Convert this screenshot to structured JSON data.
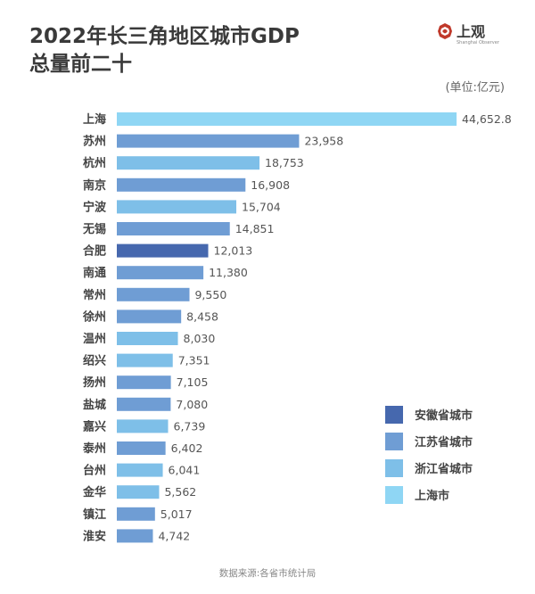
{
  "brand": {
    "name": "上观",
    "subtitle": "Shanghai Observer"
  },
  "chart_data": {
    "type": "bar",
    "orientation": "horizontal",
    "title": [
      "2022年长三角地区城市GDP",
      "总量前二十"
    ],
    "unit_label": "(单位:亿元)",
    "source": "数据来源:各省市统计局",
    "xlim": [
      0,
      45000
    ],
    "categories": [
      "上海",
      "苏州",
      "杭州",
      "南京",
      "宁波",
      "无锡",
      "合肥",
      "南通",
      "常州",
      "徐州",
      "温州",
      "绍兴",
      "扬州",
      "盐城",
      "嘉兴",
      "泰州",
      "台州",
      "金华",
      "镇江",
      "淮安"
    ],
    "values": [
      44652.8,
      23958,
      18753,
      16908,
      15704,
      14851,
      12013,
      11380,
      9550,
      8458,
      8030,
      7351,
      7105,
      7080,
      6739,
      6402,
      6041,
      5562,
      5017,
      4742
    ],
    "value_labels": [
      "44,652.8",
      "23,958",
      "18,753",
      "16,908",
      "15,704",
      "14,851",
      "12,013",
      "11,380",
      "9,550",
      "8,458",
      "8,030",
      "7,351",
      "7,105",
      "7,080",
      "6,739",
      "6,402",
      "6,041",
      "5,562",
      "5,017",
      "4,742"
    ],
    "groups": [
      "上海市",
      "江苏省城市",
      "浙江省城市",
      "江苏省城市",
      "浙江省城市",
      "江苏省城市",
      "安徽省城市",
      "江苏省城市",
      "江苏省城市",
      "江苏省城市",
      "浙江省城市",
      "浙江省城市",
      "江苏省城市",
      "江苏省城市",
      "浙江省城市",
      "江苏省城市",
      "浙江省城市",
      "浙江省城市",
      "江苏省城市",
      "江苏省城市"
    ],
    "legend": [
      {
        "label": "安徽省城市",
        "color": "#4668ae"
      },
      {
        "label": "江苏省城市",
        "color": "#6f9dd4"
      },
      {
        "label": "浙江省城市",
        "color": "#7ebfe8"
      },
      {
        "label": "上海市",
        "color": "#8fd6f4"
      }
    ],
    "legend_position": "bottom-right"
  }
}
